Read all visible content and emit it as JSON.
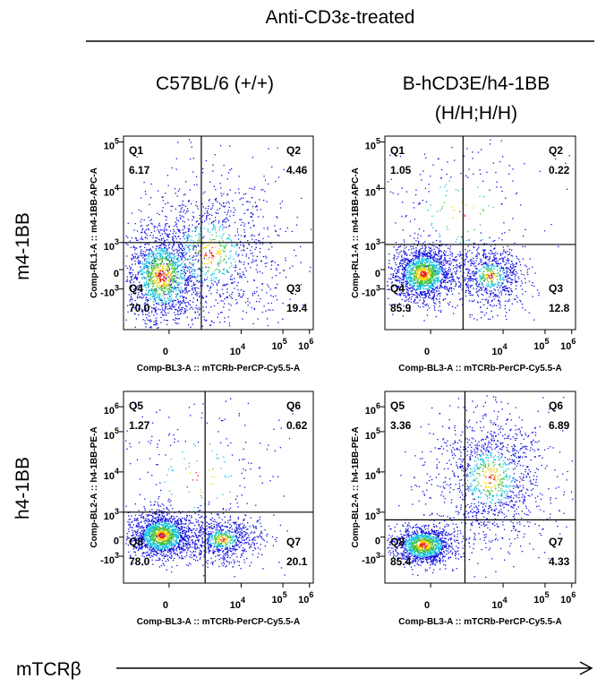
{
  "header": {
    "treatment": "Anti-CD3ε-treated"
  },
  "columns": [
    [
      "C57BL/6 (+/+)"
    ],
    [
      "B-hCD3E/h4-1BB",
      "(H/H;H/H)"
    ]
  ],
  "rows": [
    "m4-1BB",
    "h4-1BB"
  ],
  "x_axis_label": "mTCRβ",
  "panels": [
    {
      "ylabel": "Comp-RL1-A :: m4-1BB-APC-A",
      "xlabel": "Comp-BL3-A :: mTCRb-PerCP-Cy5.5-A",
      "quadrants": [
        {
          "name": "Q1",
          "value": "6.17"
        },
        {
          "name": "Q2",
          "value": "4.46"
        },
        {
          "name": "Q3",
          "value": "19.4"
        },
        {
          "name": "Q4",
          "value": "70.0"
        }
      ],
      "xticks": [
        "0",
        {
          "base": "10",
          "exp": "4"
        },
        {
          "base": "10",
          "exp": "5"
        },
        {
          "base": "10",
          "exp": "6"
        }
      ],
      "yticks": [
        {
          "base": "10",
          "exp": "5"
        },
        {
          "base": "10",
          "exp": "4"
        },
        {
          "base": "10",
          "exp": "3"
        },
        "0",
        {
          "base": "-10",
          "exp": "3"
        }
      ]
    },
    {
      "ylabel": "Comp-RL1-A :: m4-1BB-APC-A",
      "xlabel": "Comp-BL3-A :: mTCRb-PerCP-Cy5.5-A",
      "quadrants": [
        {
          "name": "Q1",
          "value": "1.05"
        },
        {
          "name": "Q2",
          "value": "0.22"
        },
        {
          "name": "Q3",
          "value": "12.8"
        },
        {
          "name": "Q4",
          "value": "85.9"
        }
      ],
      "xticks": [
        "0",
        {
          "base": "10",
          "exp": "4"
        },
        {
          "base": "10",
          "exp": "5"
        },
        {
          "base": "10",
          "exp": "6"
        }
      ],
      "yticks": [
        {
          "base": "10",
          "exp": "5"
        },
        {
          "base": "10",
          "exp": "4"
        },
        {
          "base": "10",
          "exp": "3"
        },
        "0",
        {
          "base": "-10",
          "exp": "3"
        }
      ]
    },
    {
      "ylabel": "Comp-BL2-A :: h4-1BB-PE-A",
      "xlabel": "Comp-BL3-A :: mTCRb-PerCP-Cy5.5-A",
      "quadrants": [
        {
          "name": "Q5",
          "value": "1.27"
        },
        {
          "name": "Q6",
          "value": "0.62"
        },
        {
          "name": "Q7",
          "value": "20.1"
        },
        {
          "name": "Q8",
          "value": "78.0"
        }
      ],
      "xticks": [
        "0",
        {
          "base": "10",
          "exp": "4"
        },
        {
          "base": "10",
          "exp": "5"
        },
        {
          "base": "10",
          "exp": "6"
        }
      ],
      "yticks": [
        {
          "base": "10",
          "exp": "6"
        },
        {
          "base": "10",
          "exp": "5"
        },
        {
          "base": "10",
          "exp": "4"
        },
        {
          "base": "10",
          "exp": "3"
        },
        "0",
        {
          "base": "-10",
          "exp": "3"
        }
      ]
    },
    {
      "ylabel": "Comp-BL2-A :: h4-1BB-PE-A",
      "xlabel": "Comp-BL3-A :: mTCRb-PerCP-Cy5.5-A",
      "quadrants": [
        {
          "name": "Q5",
          "value": "3.36"
        },
        {
          "name": "Q6",
          "value": "6.89"
        },
        {
          "name": "Q7",
          "value": "4.33"
        },
        {
          "name": "Q8",
          "value": "85.4"
        }
      ],
      "xticks": [
        "0",
        {
          "base": "10",
          "exp": "4"
        },
        {
          "base": "10",
          "exp": "5"
        },
        {
          "base": "10",
          "exp": "6"
        }
      ],
      "yticks": [
        {
          "base": "10",
          "exp": "6"
        },
        {
          "base": "10",
          "exp": "5"
        },
        {
          "base": "10",
          "exp": "4"
        },
        {
          "base": "10",
          "exp": "3"
        },
        "0",
        {
          "base": "-10",
          "exp": "3"
        }
      ]
    }
  ]
}
